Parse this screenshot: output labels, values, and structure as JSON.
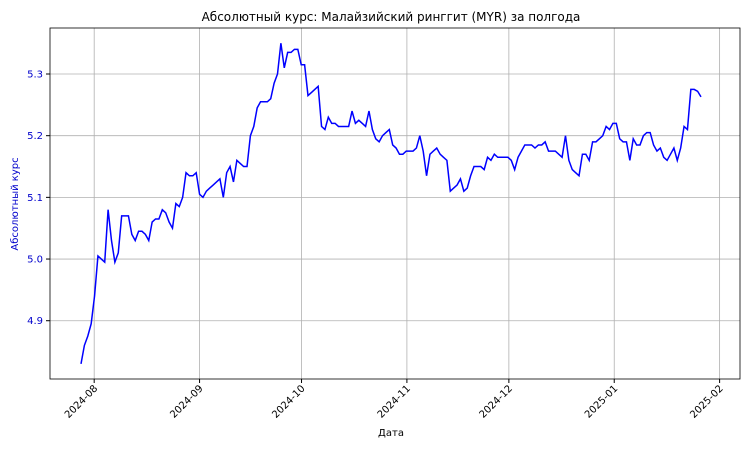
{
  "chart_data": {
    "type": "line",
    "title": "Абсолютный курс: Малайзийский ринггит (MYR) за полгода",
    "xlabel": "Дата",
    "ylabel": "Абсолютный курс",
    "color": "#0000ff",
    "grid": true,
    "xlim": [
      "2024-07-19",
      "2025-02-07"
    ],
    "xticks": [
      "2024-08",
      "2024-09",
      "2024-10",
      "2024-11",
      "2024-12",
      "2025-01",
      "2025-02"
    ],
    "ylim": [
      4.8055,
      5.3746
    ],
    "yticks": [
      4.9,
      {
        "value": 5,
        "label": "5.0"
      },
      5.1,
      5.2,
      5.3
    ],
    "values": [
      4.83,
      4.86,
      4.875,
      4.895,
      4.94,
      5.005,
      5.0,
      4.995,
      5.08,
      5.03,
      4.995,
      5.01,
      5.07,
      5.07,
      5.07,
      5.04,
      5.03,
      5.045,
      5.045,
      5.04,
      5.03,
      5.06,
      5.065,
      5.065,
      5.08,
      5.075,
      5.06,
      5.05,
      5.09,
      5.085,
      5.1,
      5.14,
      5.135,
      5.135,
      5.14,
      5.105,
      5.1,
      5.11,
      5.115,
      5.12,
      5.125,
      5.13,
      5.1,
      5.14,
      5.15,
      5.125,
      5.16,
      5.155,
      5.15,
      5.15,
      5.2,
      5.215,
      5.245,
      5.255,
      5.255,
      5.255,
      5.26,
      5.285,
      5.3,
      5.35,
      5.31,
      5.335,
      5.335,
      5.34,
      5.34,
      5.315,
      5.315,
      5.265,
      5.27,
      5.275,
      5.28,
      5.215,
      5.21,
      5.23,
      5.22,
      5.22,
      5.215,
      5.215,
      5.215,
      5.215,
      5.24,
      5.22,
      5.225,
      5.22,
      5.215,
      5.24,
      5.21,
      5.195,
      5.19,
      5.2,
      5.205,
      5.21,
      5.185,
      5.18,
      5.17,
      5.17,
      5.175,
      5.175,
      5.175,
      5.18,
      5.2,
      5.175,
      5.135,
      5.17,
      5.175,
      5.18,
      5.17,
      5.165,
      5.16,
      5.11,
      5.115,
      5.12,
      5.13,
      5.11,
      5.115,
      5.135,
      5.15,
      5.15,
      5.15,
      5.145,
      5.165,
      5.16,
      5.17,
      5.165,
      5.165,
      5.165,
      5.165,
      5.16,
      5.145,
      5.165,
      5.175,
      5.185,
      5.185,
      5.185,
      5.18,
      5.185,
      5.185,
      5.19,
      5.175,
      5.175,
      5.175,
      5.17,
      5.165,
      5.2,
      5.16,
      5.145,
      5.14,
      5.135,
      5.17,
      5.17,
      5.16,
      5.19,
      5.19,
      5.195,
      5.2,
      5.215,
      5.21,
      5.22,
      5.22,
      5.195,
      5.19,
      5.19,
      5.16,
      5.195,
      5.185,
      5.185,
      5.2,
      5.205,
      5.205,
      5.185,
      5.175,
      5.18,
      5.165,
      5.16,
      5.17,
      5.18,
      5.16,
      5.18,
      5.215,
      5.21,
      5.275,
      5.275,
      5.272,
      5.263
    ]
  }
}
